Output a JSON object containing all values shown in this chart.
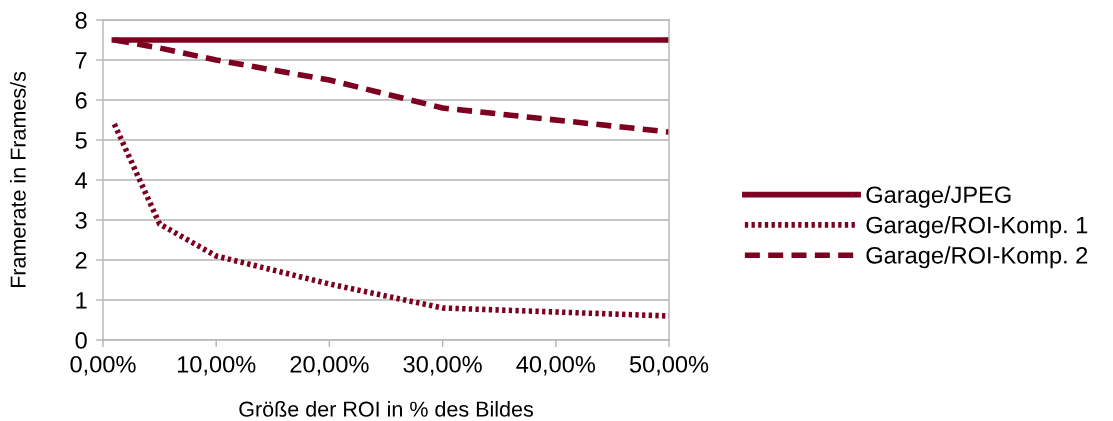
{
  "chart_data": {
    "type": "line",
    "xlabel": "Größe der ROI in % des Bildes",
    "ylabel": "Framerate in Frames/s",
    "x": [
      1,
      5,
      10,
      20,
      30,
      50
    ],
    "series": [
      {
        "name": "Garage/JPEG",
        "color": "#7e0021",
        "line_style": "solid",
        "values": [
          7.5,
          7.5,
          7.5,
          7.5,
          7.5,
          7.5
        ]
      },
      {
        "name": "Garage/ROI-Komp. 1",
        "color": "#7e0021",
        "line_style": "dotted",
        "values": [
          5.4,
          2.9,
          2.1,
          1.4,
          0.8,
          0.6
        ]
      },
      {
        "name": "Garage/ROI-Komp. 2",
        "color": "#7e0021",
        "line_style": "dashed",
        "values": [
          7.5,
          7.3,
          7.0,
          6.5,
          5.8,
          5.2
        ]
      }
    ],
    "xlim": [
      0,
      50
    ],
    "xticks": [
      {
        "value": 0,
        "label": "0,00%"
      },
      {
        "value": 10,
        "label": "10,00%"
      },
      {
        "value": 20,
        "label": "20,00%"
      },
      {
        "value": 30,
        "label": "30,00%"
      },
      {
        "value": 40,
        "label": "40,00%"
      },
      {
        "value": 50,
        "label": "50,00%"
      }
    ],
    "ylim": [
      0,
      8
    ],
    "yticks": [
      0,
      1,
      2,
      3,
      4,
      5,
      6,
      7,
      8
    ],
    "grid": "y",
    "legend": "right",
    "marker": "none"
  }
}
